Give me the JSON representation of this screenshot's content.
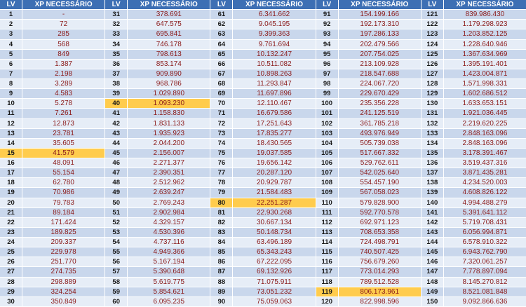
{
  "columns": {
    "lv": "LV",
    "xp": "XP NECESSÁRIO"
  },
  "colors": {
    "header": "#3d6fb4",
    "row_dark": "#c9d7ec",
    "row_light": "#e6edf7",
    "highlight": "#ffcc4d",
    "value_text": "#8b1a1a"
  },
  "highlighted_levels": [
    15,
    40,
    80,
    119
  ],
  "blocks": [
    {
      "rows": [
        {
          "lv": "1",
          "xp": "-"
        },
        {
          "lv": "2",
          "xp": "72"
        },
        {
          "lv": "3",
          "xp": "285"
        },
        {
          "lv": "4",
          "xp": "568"
        },
        {
          "lv": "5",
          "xp": "849"
        },
        {
          "lv": "6",
          "xp": "1.387"
        },
        {
          "lv": "7",
          "xp": "2.198"
        },
        {
          "lv": "8",
          "xp": "3.289"
        },
        {
          "lv": "9",
          "xp": "4.583"
        },
        {
          "lv": "10",
          "xp": "5.278"
        },
        {
          "lv": "11",
          "xp": "7.261"
        },
        {
          "lv": "12",
          "xp": "12.873"
        },
        {
          "lv": "13",
          "xp": "23.781"
        },
        {
          "lv": "14",
          "xp": "35.605"
        },
        {
          "lv": "15",
          "xp": "41.579"
        },
        {
          "lv": "16",
          "xp": "48.091"
        },
        {
          "lv": "17",
          "xp": "55.154"
        },
        {
          "lv": "18",
          "xp": "62.780"
        },
        {
          "lv": "19",
          "xp": "70.986"
        },
        {
          "lv": "20",
          "xp": "79.783"
        },
        {
          "lv": "21",
          "xp": "89.184"
        },
        {
          "lv": "22",
          "xp": "171.424"
        },
        {
          "lv": "23",
          "xp": "189.825"
        },
        {
          "lv": "24",
          "xp": "209.337"
        },
        {
          "lv": "25",
          "xp": "229.978"
        },
        {
          "lv": "26",
          "xp": "251.770"
        },
        {
          "lv": "27",
          "xp": "274.735"
        },
        {
          "lv": "28",
          "xp": "298.889"
        },
        {
          "lv": "29",
          "xp": "324.254"
        },
        {
          "lv": "30",
          "xp": "350.849"
        }
      ]
    },
    {
      "rows": [
        {
          "lv": "31",
          "xp": "378.691"
        },
        {
          "lv": "32",
          "xp": "647.575"
        },
        {
          "lv": "33",
          "xp": "695.841"
        },
        {
          "lv": "34",
          "xp": "746.178"
        },
        {
          "lv": "35",
          "xp": "798.613"
        },
        {
          "lv": "36",
          "xp": "853.174"
        },
        {
          "lv": "37",
          "xp": "909.890"
        },
        {
          "lv": "38",
          "xp": "968.786"
        },
        {
          "lv": "39",
          "xp": "1.029.890"
        },
        {
          "lv": "40",
          "xp": "1.093.230"
        },
        {
          "lv": "41",
          "xp": "1.158.830"
        },
        {
          "lv": "42",
          "xp": "1.831.133"
        },
        {
          "lv": "43",
          "xp": "1.935.923"
        },
        {
          "lv": "44",
          "xp": "2.044.200"
        },
        {
          "lv": "45",
          "xp": "2.156.007"
        },
        {
          "lv": "46",
          "xp": "2.271.377"
        },
        {
          "lv": "47",
          "xp": "2.390.351"
        },
        {
          "lv": "48",
          "xp": "2.512.962"
        },
        {
          "lv": "49",
          "xp": "2.639.247"
        },
        {
          "lv": "50",
          "xp": "2.769.243"
        },
        {
          "lv": "51",
          "xp": "2.902.984"
        },
        {
          "lv": "52",
          "xp": "4.329.157"
        },
        {
          "lv": "53",
          "xp": "4.530.396"
        },
        {
          "lv": "54",
          "xp": "4.737.116"
        },
        {
          "lv": "55",
          "xp": "4.949.366"
        },
        {
          "lv": "56",
          "xp": "5.167.194"
        },
        {
          "lv": "57",
          "xp": "5.390.648"
        },
        {
          "lv": "58",
          "xp": "5.619.775"
        },
        {
          "lv": "59",
          "xp": "5.854.621"
        },
        {
          "lv": "60",
          "xp": "6.095.235"
        }
      ]
    },
    {
      "rows": [
        {
          "lv": "61",
          "xp": "6.341.662"
        },
        {
          "lv": "62",
          "xp": "9.045.195"
        },
        {
          "lv": "63",
          "xp": "9.399.363"
        },
        {
          "lv": "64",
          "xp": "9.761.694"
        },
        {
          "lv": "65",
          "xp": "10.132.247"
        },
        {
          "lv": "66",
          "xp": "10.511.082"
        },
        {
          "lv": "67",
          "xp": "10.898.263"
        },
        {
          "lv": "68",
          "xp": "11.293.847"
        },
        {
          "lv": "69",
          "xp": "11.697.896"
        },
        {
          "lv": "70",
          "xp": "12.110.467"
        },
        {
          "lv": "71",
          "xp": "16.679.586"
        },
        {
          "lv": "72",
          "xp": "17.251.643"
        },
        {
          "lv": "73",
          "xp": "17.835.277"
        },
        {
          "lv": "74",
          "xp": "18.430.565"
        },
        {
          "lv": "75",
          "xp": "19.037.585"
        },
        {
          "lv": "76",
          "xp": "19.656.142"
        },
        {
          "lv": "77",
          "xp": "20.287.120"
        },
        {
          "lv": "78",
          "xp": "20.929.787"
        },
        {
          "lv": "79",
          "xp": "21.584.483"
        },
        {
          "lv": "80",
          "xp": "22.251.287"
        },
        {
          "lv": "81",
          "xp": "22.930.268"
        },
        {
          "lv": "82",
          "xp": "30.667.134"
        },
        {
          "lv": "83",
          "xp": "50.148.734"
        },
        {
          "lv": "84",
          "xp": "63.496.189"
        },
        {
          "lv": "85",
          "xp": "65.343.243"
        },
        {
          "lv": "86",
          "xp": "67.222.095"
        },
        {
          "lv": "87",
          "xp": "69.132.926"
        },
        {
          "lv": "88",
          "xp": "71.075.911"
        },
        {
          "lv": "89",
          "xp": "73.051.232"
        },
        {
          "lv": "90",
          "xp": "75.059.063"
        }
      ]
    },
    {
      "rows": [
        {
          "lv": "91",
          "xp": "154.199.166"
        },
        {
          "lv": "92",
          "xp": "192.173.310"
        },
        {
          "lv": "93",
          "xp": "197.286.133"
        },
        {
          "lv": "94",
          "xp": "202.479.566"
        },
        {
          "lv": "95",
          "xp": "207.754.025"
        },
        {
          "lv": "96",
          "xp": "213.109.928"
        },
        {
          "lv": "97",
          "xp": "218.547.688"
        },
        {
          "lv": "98",
          "xp": "224.067.720"
        },
        {
          "lv": "99",
          "xp": "229.670.429"
        },
        {
          "lv": "100",
          "xp": "235.356.228"
        },
        {
          "lv": "101",
          "xp": "241.125.519"
        },
        {
          "lv": "102",
          "xp": "361.785.218"
        },
        {
          "lv": "103",
          "xp": "493.976.949"
        },
        {
          "lv": "104",
          "xp": "505.739.038"
        },
        {
          "lv": "105",
          "xp": "517.667.332"
        },
        {
          "lv": "106",
          "xp": "529.762.611"
        },
        {
          "lv": "107",
          "xp": "542.025.640"
        },
        {
          "lv": "108",
          "xp": "554.457.190"
        },
        {
          "lv": "109",
          "xp": "567.058.023"
        },
        {
          "lv": "110",
          "xp": "579.828.900"
        },
        {
          "lv": "111",
          "xp": "592.770.578"
        },
        {
          "lv": "112",
          "xp": "692.971.123"
        },
        {
          "lv": "113",
          "xp": "708.653.358"
        },
        {
          "lv": "114",
          "xp": "724.498.791"
        },
        {
          "lv": "115",
          "xp": "740.507.425"
        },
        {
          "lv": "116",
          "xp": "756.679.260"
        },
        {
          "lv": "117",
          "xp": "773.014.293"
        },
        {
          "lv": "118",
          "xp": "789.512.528"
        },
        {
          "lv": "119",
          "xp": "806.173.961"
        },
        {
          "lv": "120",
          "xp": "822.998.596"
        }
      ]
    },
    {
      "rows": [
        {
          "lv": "121",
          "xp": "839.986.430"
        },
        {
          "lv": "122",
          "xp": "1.179.298.923"
        },
        {
          "lv": "123",
          "xp": "1.203.852.125"
        },
        {
          "lv": "124",
          "xp": "1.228.640.946"
        },
        {
          "lv": "125",
          "xp": "1.367.634.969"
        },
        {
          "lv": "126",
          "xp": "1.395.191.401"
        },
        {
          "lv": "127",
          "xp": "1.423.004.871"
        },
        {
          "lv": "128",
          "xp": "1.571.998.331"
        },
        {
          "lv": "129",
          "xp": "1.602.686.512"
        },
        {
          "lv": "130",
          "xp": "1.633.653.151"
        },
        {
          "lv": "131",
          "xp": "1.921.036.445"
        },
        {
          "lv": "132",
          "xp": "2.219.620.225"
        },
        {
          "lv": "133",
          "xp": "2.848.163.096"
        },
        {
          "lv": "134",
          "xp": "2.848.163.096"
        },
        {
          "lv": "135",
          "xp": "3.178.391.467"
        },
        {
          "lv": "136",
          "xp": "3.519.437.316"
        },
        {
          "lv": "137",
          "xp": "3.871.435.281"
        },
        {
          "lv": "138",
          "xp": "4.234.520.003"
        },
        {
          "lv": "139",
          "xp": "4.608.826.122"
        },
        {
          "lv": "140",
          "xp": "4.994.488.279"
        },
        {
          "lv": "141",
          "xp": "5.391.641.112"
        },
        {
          "lv": "142",
          "xp": "5.719.708.431"
        },
        {
          "lv": "143",
          "xp": "6.056.994.871"
        },
        {
          "lv": "144",
          "xp": "6.578.910.322"
        },
        {
          "lv": "145",
          "xp": "6.943.762.790"
        },
        {
          "lv": "146",
          "xp": "7.320.061.257"
        },
        {
          "lv": "147",
          "xp": "7.778.897.094"
        },
        {
          "lv": "148",
          "xp": "8.145.270.812"
        },
        {
          "lv": "149",
          "xp": "8.521.081.848"
        },
        {
          "lv": "150",
          "xp": "9.092.866.636"
        }
      ]
    }
  ]
}
